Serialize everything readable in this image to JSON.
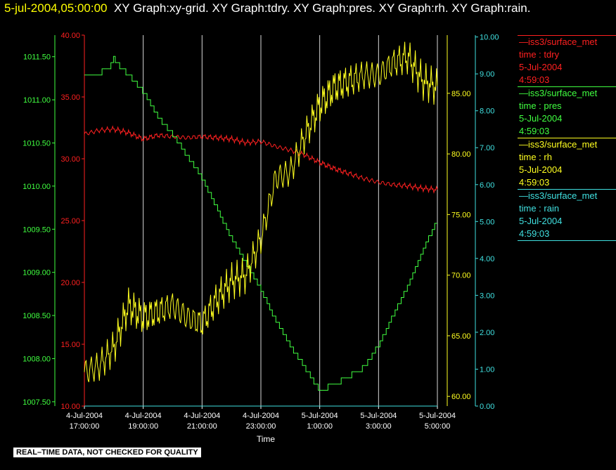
{
  "header": {
    "timestamp": "5-jul-2004,05:00:00",
    "titles": "XY Graph:xy-grid.  XY Graph:tdry.  XY Graph:pres.  XY Graph:rh.  XY Graph:rain."
  },
  "legend": [
    {
      "name": "iss3/surface_met",
      "var": "time : tdry",
      "date": "5-Jul-2004",
      "time": "4:59:03",
      "color": "#ff2020"
    },
    {
      "name": "iss3/surface_met",
      "var": "time : pres",
      "date": "5-Jul-2004",
      "time": "4:59:03",
      "color": "#40ff40"
    },
    {
      "name": "iss3/surface_met",
      "var": "time : rh",
      "date": "5-Jul-2004",
      "time": "4:59:03",
      "color": "#ffff20"
    },
    {
      "name": "iss3/surface_met",
      "var": "time : rain",
      "date": "5-Jul-2004",
      "time": "4:59:03",
      "color": "#40e0e0"
    }
  ],
  "footer": "REAL–TIME DATA, NOT CHECKED FOR QUALITY",
  "chart_data": {
    "type": "line",
    "xlabel": "Time",
    "x_ticks": [
      [
        "4-Jul-2004",
        "17:00:00"
      ],
      [
        "4-Jul-2004",
        "19:00:00"
      ],
      [
        "4-Jul-2004",
        "21:00:00"
      ],
      [
        "4-Jul-2004",
        "23:00:00"
      ],
      [
        "5-Jul-2004",
        "1:00:00"
      ],
      [
        "5-Jul-2004",
        "3:00:00"
      ],
      [
        "5-Jul-2004",
        "5:00:00"
      ]
    ],
    "grid": "vertical",
    "axes": {
      "pres": {
        "ticks": [
          "1007.50",
          "1008.00",
          "1008.50",
          "1009.00",
          "1009.50",
          "1010.00",
          "1010.50",
          "1011.00",
          "1011.50"
        ],
        "range": [
          1007.45,
          1011.75
        ],
        "color": "#40ff40"
      },
      "tdry": {
        "ticks": [
          "10.00",
          "15.00",
          "20.00",
          "25.00",
          "30.00",
          "35.00",
          "40.00"
        ],
        "range": [
          10,
          40
        ],
        "color": "#ff2020"
      },
      "rh": {
        "ticks": [
          "60.00",
          "65.00",
          "70.00",
          "75.00",
          "80.00",
          "85.00"
        ],
        "range": [
          59.2,
          89.8
        ],
        "color": "#ffff20"
      },
      "rain": {
        "ticks": [
          "0.00",
          "1.00",
          "2.00",
          "3.00",
          "4.00",
          "5.00",
          "6.00",
          "7.00",
          "8.00",
          "9.00",
          "10.00"
        ],
        "range": [
          0,
          10.05
        ],
        "color": "#40e0e0"
      }
    },
    "series": [
      {
        "name": "tdry",
        "axis": "tdry",
        "x_hours": [
          0,
          0.5,
          1,
          1.5,
          2,
          2.5,
          3,
          3.5,
          4,
          4.5,
          5,
          5.5,
          6,
          6.5,
          7,
          7.5,
          8,
          8.5,
          9,
          9.5,
          10,
          10.5,
          11,
          11.5,
          12
        ],
        "values": [
          32.0,
          32.3,
          32.4,
          32.1,
          31.6,
          31.9,
          31.8,
          31.7,
          31.8,
          31.7,
          31.6,
          31.3,
          31.4,
          31.0,
          30.7,
          30.3,
          29.7,
          29.2,
          28.8,
          28.4,
          28.1,
          27.9,
          27.8,
          27.6,
          27.5
        ]
      },
      {
        "name": "pres",
        "axis": "pres",
        "x_hours": [
          0,
          0.5,
          0.9,
          1.0,
          1.3,
          1.5,
          2,
          2.5,
          3,
          3.5,
          4,
          4.5,
          5,
          5.5,
          6,
          6.5,
          7,
          7.5,
          8,
          8.5,
          9,
          9.5,
          10,
          10.5,
          11,
          11.5,
          12
        ],
        "values": [
          1011.3,
          1011.3,
          1011.4,
          1011.48,
          1011.35,
          1011.3,
          1011.1,
          1010.8,
          1010.6,
          1010.35,
          1010.1,
          1009.75,
          1009.4,
          1009.1,
          1008.8,
          1008.45,
          1008.15,
          1007.9,
          1007.63,
          1007.7,
          1007.8,
          1007.9,
          1008.15,
          1008.5,
          1008.85,
          1009.25,
          1009.6
        ]
      },
      {
        "name": "rh",
        "axis": "rh",
        "x_hours": [
          0,
          0.5,
          1,
          1.5,
          2,
          2.5,
          3,
          3.5,
          4,
          4.5,
          5,
          5.5,
          6,
          6.5,
          7,
          7.5,
          8,
          8.5,
          9,
          9.5,
          10,
          10.5,
          11,
          11.5,
          12
        ],
        "values": [
          62.0,
          62.5,
          64.0,
          67.5,
          66.5,
          67.0,
          67.5,
          66.5,
          66.0,
          68.0,
          69.5,
          70.0,
          73.0,
          78.0,
          78.5,
          81.5,
          84.0,
          85.5,
          86.0,
          86.5,
          86.5,
          87.5,
          88.0,
          86.0,
          85.5
        ]
      },
      {
        "name": "rain",
        "axis": "rain",
        "x_hours": [
          0,
          12
        ],
        "values": [
          0,
          0
        ]
      }
    ]
  }
}
